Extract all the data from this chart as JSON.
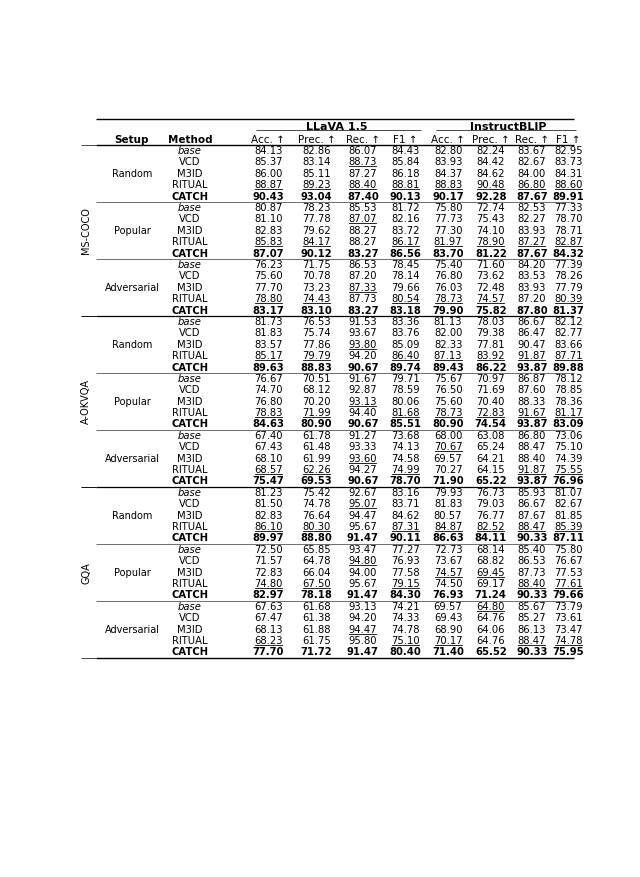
{
  "rows": [
    [
      "MS-COCO",
      "Random",
      "base",
      84.13,
      82.86,
      86.07,
      84.43,
      82.8,
      82.24,
      83.67,
      82.95,
      false,
      false,
      false,
      false,
      false,
      false,
      false,
      false
    ],
    [
      "MS-COCO",
      "Random",
      "VCD",
      85.37,
      83.14,
      88.73,
      85.84,
      83.93,
      84.42,
      82.67,
      83.73,
      false,
      false,
      true,
      false,
      false,
      false,
      false,
      false
    ],
    [
      "MS-COCO",
      "Random",
      "M3ID",
      86.0,
      85.11,
      87.27,
      86.18,
      84.37,
      84.62,
      84.0,
      84.31,
      false,
      false,
      false,
      false,
      false,
      false,
      false,
      false
    ],
    [
      "MS-COCO",
      "Random",
      "RITUAL",
      88.87,
      89.23,
      88.4,
      88.81,
      88.83,
      90.48,
      86.8,
      88.6,
      true,
      true,
      true,
      true,
      true,
      true,
      true,
      true
    ],
    [
      "MS-COCO",
      "Random",
      "CATCH",
      90.43,
      93.04,
      87.4,
      90.13,
      90.17,
      92.28,
      87.67,
      89.91,
      false,
      false,
      false,
      false,
      false,
      false,
      false,
      false
    ],
    [
      "MS-COCO",
      "Popular",
      "base",
      80.87,
      78.23,
      85.53,
      81.72,
      75.8,
      72.74,
      82.53,
      77.33,
      false,
      false,
      false,
      false,
      false,
      false,
      false,
      false
    ],
    [
      "MS-COCO",
      "Popular",
      "VCD",
      81.1,
      77.78,
      87.07,
      82.16,
      77.73,
      75.43,
      82.27,
      78.7,
      false,
      false,
      true,
      false,
      false,
      false,
      false,
      false
    ],
    [
      "MS-COCO",
      "Popular",
      "M3ID",
      82.83,
      79.62,
      88.27,
      83.72,
      77.3,
      74.1,
      83.93,
      78.71,
      false,
      false,
      false,
      false,
      false,
      false,
      false,
      false
    ],
    [
      "MS-COCO",
      "Popular",
      "RITUAL",
      85.83,
      84.17,
      88.27,
      86.17,
      81.97,
      78.9,
      87.27,
      82.87,
      true,
      true,
      false,
      true,
      true,
      true,
      true,
      true
    ],
    [
      "MS-COCO",
      "Popular",
      "CATCH",
      87.07,
      90.12,
      83.27,
      86.56,
      83.7,
      81.22,
      87.67,
      84.32,
      false,
      false,
      false,
      false,
      false,
      false,
      false,
      false
    ],
    [
      "MS-COCO",
      "Adversarial",
      "base",
      76.23,
      71.75,
      86.53,
      78.45,
      75.4,
      71.6,
      84.2,
      77.39,
      false,
      false,
      false,
      false,
      false,
      false,
      false,
      false
    ],
    [
      "MS-COCO",
      "Adversarial",
      "VCD",
      75.6,
      70.78,
      87.2,
      78.14,
      76.8,
      73.62,
      83.53,
      78.26,
      false,
      false,
      false,
      false,
      false,
      false,
      false,
      false
    ],
    [
      "MS-COCO",
      "Adversarial",
      "M3ID",
      77.7,
      73.23,
      87.33,
      79.66,
      76.03,
      72.48,
      83.93,
      77.79,
      false,
      false,
      true,
      false,
      false,
      false,
      false,
      false
    ],
    [
      "MS-COCO",
      "Adversarial",
      "RITUAL",
      78.8,
      74.43,
      87.73,
      80.54,
      78.73,
      74.57,
      87.2,
      80.39,
      true,
      true,
      false,
      true,
      true,
      true,
      false,
      true
    ],
    [
      "MS-COCO",
      "Adversarial",
      "CATCH",
      83.17,
      83.1,
      83.27,
      83.18,
      79.9,
      75.82,
      87.8,
      81.37,
      false,
      false,
      false,
      false,
      false,
      false,
      false,
      false
    ],
    [
      "A-OKVQA",
      "Random",
      "base",
      81.73,
      76.53,
      91.53,
      83.36,
      81.13,
      78.03,
      86.67,
      82.12,
      false,
      false,
      false,
      false,
      false,
      false,
      false,
      false
    ],
    [
      "A-OKVQA",
      "Random",
      "VCD",
      81.83,
      75.74,
      93.67,
      83.76,
      82.0,
      79.38,
      86.47,
      82.77,
      false,
      false,
      false,
      false,
      false,
      false,
      false,
      false
    ],
    [
      "A-OKVQA",
      "Random",
      "M3ID",
      83.57,
      77.86,
      93.8,
      85.09,
      82.33,
      77.81,
      90.47,
      83.66,
      false,
      false,
      true,
      false,
      false,
      false,
      false,
      false
    ],
    [
      "A-OKVQA",
      "Random",
      "RITUAL",
      85.17,
      79.79,
      94.2,
      86.4,
      87.13,
      83.92,
      91.87,
      87.71,
      true,
      true,
      false,
      true,
      true,
      true,
      true,
      true
    ],
    [
      "A-OKVQA",
      "Random",
      "CATCH",
      89.63,
      88.83,
      90.67,
      89.74,
      89.43,
      86.22,
      93.87,
      89.88,
      false,
      false,
      false,
      false,
      false,
      false,
      false,
      false
    ],
    [
      "A-OKVQA",
      "Popular",
      "base",
      76.67,
      70.51,
      91.67,
      79.71,
      75.67,
      70.97,
      86.87,
      78.12,
      false,
      false,
      false,
      false,
      false,
      false,
      false,
      false
    ],
    [
      "A-OKVQA",
      "Popular",
      "VCD",
      74.7,
      68.12,
      92.87,
      78.59,
      76.5,
      71.69,
      87.6,
      78.85,
      false,
      false,
      false,
      false,
      false,
      false,
      false,
      false
    ],
    [
      "A-OKVQA",
      "Popular",
      "M3ID",
      76.8,
      70.2,
      93.13,
      80.06,
      75.6,
      70.4,
      88.33,
      78.36,
      false,
      false,
      true,
      false,
      false,
      false,
      false,
      false
    ],
    [
      "A-OKVQA",
      "Popular",
      "RITUAL",
      78.83,
      71.99,
      94.4,
      81.68,
      78.73,
      72.83,
      91.67,
      81.17,
      true,
      true,
      false,
      true,
      true,
      true,
      true,
      true
    ],
    [
      "A-OKVQA",
      "Popular",
      "CATCH",
      84.63,
      80.9,
      90.67,
      85.51,
      80.9,
      74.54,
      93.87,
      83.09,
      false,
      false,
      false,
      false,
      false,
      false,
      false,
      false
    ],
    [
      "A-OKVQA",
      "Adversarial",
      "base",
      67.4,
      61.78,
      91.27,
      73.68,
      68.0,
      63.08,
      86.8,
      73.06,
      false,
      false,
      false,
      false,
      false,
      false,
      false,
      false
    ],
    [
      "A-OKVQA",
      "Adversarial",
      "VCD",
      67.43,
      61.48,
      93.33,
      74.13,
      70.67,
      65.24,
      88.47,
      75.1,
      false,
      false,
      false,
      false,
      true,
      false,
      false,
      false
    ],
    [
      "A-OKVQA",
      "Adversarial",
      "M3ID",
      68.1,
      61.99,
      93.6,
      74.58,
      69.57,
      64.21,
      88.4,
      74.39,
      false,
      false,
      true,
      false,
      false,
      false,
      false,
      false
    ],
    [
      "A-OKVQA",
      "Adversarial",
      "RITUAL",
      68.57,
      62.26,
      94.27,
      74.99,
      70.27,
      64.15,
      91.87,
      75.55,
      true,
      true,
      false,
      true,
      false,
      false,
      true,
      true
    ],
    [
      "A-OKVQA",
      "Adversarial",
      "CATCH",
      75.47,
      69.53,
      90.67,
      78.7,
      71.9,
      65.22,
      93.87,
      76.96,
      false,
      false,
      false,
      false,
      false,
      false,
      false,
      false
    ],
    [
      "GQA",
      "Random",
      "base",
      81.23,
      75.42,
      92.67,
      83.16,
      79.93,
      76.73,
      85.93,
      81.07,
      false,
      false,
      false,
      false,
      false,
      false,
      false,
      false
    ],
    [
      "GQA",
      "Random",
      "VCD",
      81.5,
      74.78,
      95.07,
      83.71,
      81.83,
      79.03,
      86.67,
      82.67,
      false,
      false,
      true,
      false,
      false,
      false,
      false,
      false
    ],
    [
      "GQA",
      "Random",
      "M3ID",
      82.83,
      76.64,
      94.47,
      84.62,
      80.57,
      76.77,
      87.67,
      81.85,
      false,
      false,
      false,
      false,
      false,
      false,
      false,
      false
    ],
    [
      "GQA",
      "Random",
      "RITUAL",
      86.1,
      80.3,
      95.67,
      87.31,
      84.87,
      82.52,
      88.47,
      85.39,
      true,
      true,
      false,
      true,
      true,
      true,
      true,
      true
    ],
    [
      "GQA",
      "Random",
      "CATCH",
      89.97,
      88.8,
      91.47,
      90.11,
      86.63,
      84.11,
      90.33,
      87.11,
      false,
      false,
      false,
      false,
      false,
      false,
      false,
      false
    ],
    [
      "GQA",
      "Popular",
      "base",
      72.5,
      65.85,
      93.47,
      77.27,
      72.73,
      68.14,
      85.4,
      75.8,
      false,
      false,
      false,
      false,
      false,
      false,
      false,
      false
    ],
    [
      "GQA",
      "Popular",
      "VCD",
      71.57,
      64.78,
      94.8,
      76.93,
      73.67,
      68.82,
      86.53,
      76.67,
      false,
      false,
      true,
      false,
      false,
      false,
      false,
      false
    ],
    [
      "GQA",
      "Popular",
      "M3ID",
      72.83,
      66.04,
      94.0,
      77.58,
      74.57,
      69.45,
      87.73,
      77.53,
      false,
      false,
      false,
      false,
      true,
      true,
      false,
      false
    ],
    [
      "GQA",
      "Popular",
      "RITUAL",
      74.8,
      67.5,
      95.67,
      79.15,
      74.5,
      69.17,
      88.4,
      77.61,
      true,
      true,
      false,
      true,
      false,
      false,
      true,
      true
    ],
    [
      "GQA",
      "Popular",
      "CATCH",
      82.97,
      78.18,
      91.47,
      84.3,
      76.93,
      71.24,
      90.33,
      79.66,
      false,
      false,
      false,
      false,
      false,
      false,
      false,
      false
    ],
    [
      "GQA",
      "Adversarial",
      "base",
      67.63,
      61.68,
      93.13,
      74.21,
      69.57,
      64.8,
      85.67,
      73.79,
      false,
      false,
      false,
      false,
      false,
      true,
      false,
      false
    ],
    [
      "GQA",
      "Adversarial",
      "VCD",
      67.47,
      61.38,
      94.2,
      74.33,
      69.43,
      64.76,
      85.27,
      73.61,
      false,
      false,
      false,
      false,
      false,
      false,
      false,
      false
    ],
    [
      "GQA",
      "Adversarial",
      "M3ID",
      68.13,
      61.88,
      94.47,
      74.78,
      68.9,
      64.06,
      86.13,
      73.47,
      false,
      false,
      true,
      false,
      false,
      false,
      false,
      false
    ],
    [
      "GQA",
      "Adversarial",
      "RITUAL",
      68.23,
      61.75,
      95.8,
      75.1,
      70.17,
      64.76,
      88.47,
      74.78,
      true,
      false,
      false,
      true,
      true,
      false,
      true,
      true
    ],
    [
      "GQA",
      "Adversarial",
      "CATCH",
      77.7,
      71.72,
      91.47,
      80.4,
      71.4,
      65.52,
      90.33,
      75.95,
      false,
      false,
      false,
      false,
      false,
      false,
      false,
      false
    ]
  ]
}
